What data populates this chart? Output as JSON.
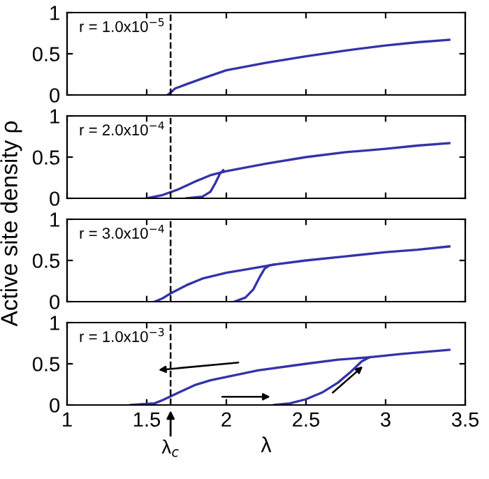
{
  "chart_data": [
    {
      "type": "line",
      "ylabel": "Active site density ρ",
      "xlim": [
        1,
        3.5
      ],
      "xticks": [
        1,
        1.5,
        2,
        2.5,
        3,
        3.5
      ],
      "ylim": [
        0,
        1
      ],
      "yticks": [
        0,
        0.5,
        1
      ],
      "tick_labels": "y",
      "annotations": [
        "r = 1.0x10$^{−5}$"
      ],
      "ref_lines": [
        {
          "axis": "x",
          "value": 1.65,
          "line_style": "dashed",
          "color": "#000000"
        }
      ],
      "series": [
        {
          "color": "#3333aa",
          "x": [
            1.63,
            1.65,
            1.68,
            1.75,
            1.85,
            2.0,
            2.25,
            2.5,
            2.75,
            3.0,
            3.2,
            3.4
          ],
          "values": [
            0,
            0.03,
            0.08,
            0.13,
            0.2,
            0.3,
            0.39,
            0.47,
            0.54,
            0.6,
            0.64,
            0.67
          ]
        }
      ]
    },
    {
      "type": "line",
      "xlim": [
        1,
        3.5
      ],
      "xticks": [
        1,
        1.5,
        2,
        2.5,
        3,
        3.5
      ],
      "ylim": [
        0,
        1
      ],
      "yticks": [
        0,
        0.5,
        1
      ],
      "tick_labels": "y",
      "annotations": [
        "r = 2.0x10$^{−4}$"
      ],
      "ref_lines": [
        {
          "axis": "x",
          "value": 1.65,
          "line_style": "dashed",
          "color": "#000000"
        }
      ],
      "series": [
        {
          "color": "#3333aa",
          "x": [
            1.5,
            1.6,
            1.7,
            1.8,
            1.9,
            2.0,
            2.25,
            2.5,
            2.75,
            3.0,
            3.2,
            3.4
          ],
          "values": [
            0,
            0.04,
            0.11,
            0.2,
            0.28,
            0.33,
            0.42,
            0.5,
            0.56,
            0.6,
            0.64,
            0.67
          ]
        },
        {
          "color": "#3333aa",
          "x": [
            1.75,
            1.85,
            1.9,
            1.93,
            1.96,
            1.98
          ],
          "values": [
            0,
            0.02,
            0.08,
            0.18,
            0.3,
            0.34
          ]
        }
      ]
    },
    {
      "type": "line",
      "xlim": [
        1,
        3.5
      ],
      "xticks": [
        1,
        1.5,
        2,
        2.5,
        3,
        3.5
      ],
      "ylim": [
        0,
        1
      ],
      "yticks": [
        0,
        0.5,
        1
      ],
      "tick_labels": "y",
      "annotations": [
        "r = 3.0x10$^{−4}$"
      ],
      "ref_lines": [
        {
          "axis": "x",
          "value": 1.65,
          "line_style": "dashed",
          "color": "#000000"
        }
      ],
      "series": [
        {
          "color": "#3333aa",
          "x": [
            1.55,
            1.6,
            1.65,
            1.75,
            1.85,
            2.0,
            2.15,
            2.3,
            2.5,
            2.75,
            3.0,
            3.2,
            3.4
          ],
          "values": [
            0,
            0.04,
            0.1,
            0.2,
            0.28,
            0.35,
            0.4,
            0.45,
            0.5,
            0.55,
            0.6,
            0.63,
            0.67
          ]
        },
        {
          "color": "#3333aa",
          "x": [
            2.05,
            2.12,
            2.17,
            2.21,
            2.24,
            2.27,
            2.3
          ],
          "values": [
            0,
            0.05,
            0.15,
            0.3,
            0.4,
            0.44,
            0.45
          ]
        }
      ]
    },
    {
      "type": "line",
      "xlabel": "λ",
      "xlim": [
        1,
        3.5
      ],
      "xticks": [
        1,
        1.5,
        2,
        2.5,
        3,
        3.5
      ],
      "ylim": [
        0,
        1
      ],
      "yticks": [
        0,
        0.5,
        1
      ],
      "annotations": [
        "r = 1.0x10$^{−3}$",
        {
          "text": "λ$_{c}$",
          "x": 1.65,
          "y": 0
        }
      ],
      "ref_lines": [
        {
          "axis": "x",
          "value": 1.65,
          "line_style": "dashed",
          "color": "#000000"
        }
      ],
      "series": [
        {
          "color": "#3333aa",
          "x": [
            1.4,
            1.55,
            1.6,
            1.7,
            1.8,
            1.9,
            2.0,
            2.2,
            2.5,
            2.7,
            2.9,
            3.1,
            3.4
          ],
          "values": [
            0,
            0.02,
            0.06,
            0.15,
            0.24,
            0.3,
            0.34,
            0.42,
            0.5,
            0.55,
            0.58,
            0.62,
            0.67
          ]
        },
        {
          "color": "#3333aa",
          "x": [
            2.3,
            2.4,
            2.5,
            2.6,
            2.7,
            2.78,
            2.85,
            2.9
          ],
          "values": [
            0,
            0.02,
            0.07,
            0.15,
            0.27,
            0.4,
            0.53,
            0.58
          ]
        }
      ]
    }
  ]
}
